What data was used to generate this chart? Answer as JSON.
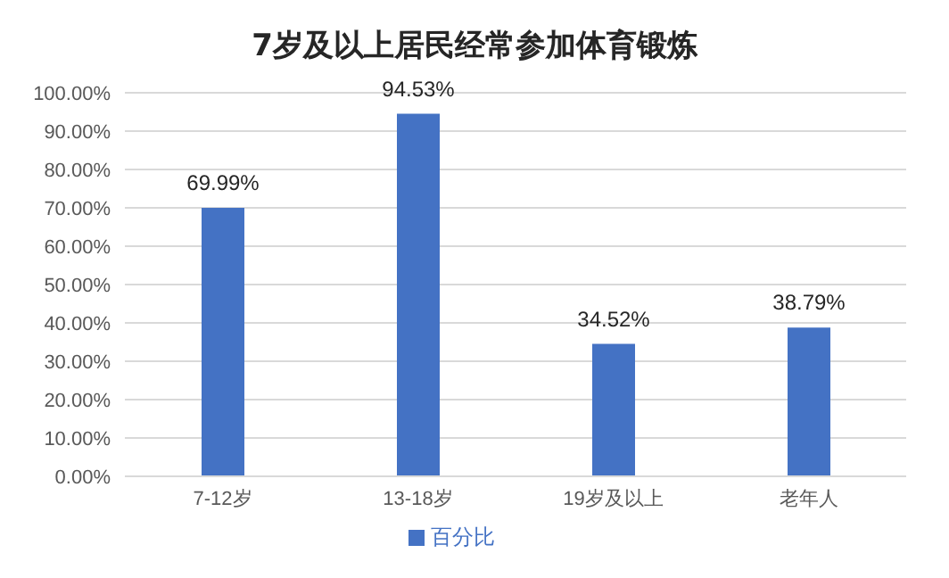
{
  "chart_data": {
    "type": "bar",
    "title": "7岁及以上居民经常参加体育锻炼",
    "categories": [
      "7-12岁",
      "13-18岁",
      "19岁及以上",
      "老年人"
    ],
    "series": [
      {
        "name": "百分比",
        "color": "#4472c4",
        "values": [
          69.99,
          94.53,
          34.52,
          38.79
        ],
        "value_labels": [
          "69.99%",
          "94.53%",
          "34.52%",
          "38.79%"
        ]
      }
    ],
    "ylim": [
      0,
      100
    ],
    "yticks": [
      {
        "value": 0,
        "label": "0.00%"
      },
      {
        "value": 10,
        "label": "10.00%"
      },
      {
        "value": 20,
        "label": "20.00%"
      },
      {
        "value": 30,
        "label": "30.00%"
      },
      {
        "value": 40,
        "label": "40.00%"
      },
      {
        "value": 50,
        "label": "50.00%"
      },
      {
        "value": 60,
        "label": "60.00%"
      },
      {
        "value": 70,
        "label": "70.00%"
      },
      {
        "value": 80,
        "label": "80.00%"
      },
      {
        "value": 90,
        "label": "90.00%"
      },
      {
        "value": 100,
        "label": "100.00%"
      }
    ],
    "grid": "y",
    "legend": "bottom"
  }
}
